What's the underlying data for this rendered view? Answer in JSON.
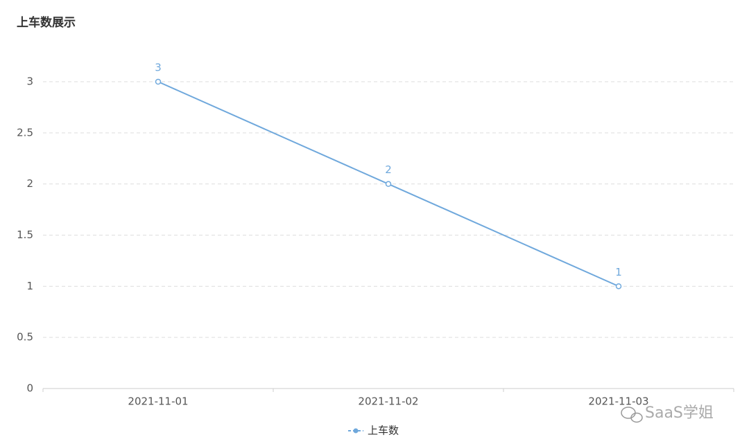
{
  "chart_data": {
    "type": "line",
    "title": "上车数展示",
    "categories": [
      "2021-11-01",
      "2021-11-02",
      "2021-11-03"
    ],
    "series": [
      {
        "name": "上车数",
        "color": "#6fa8dc",
        "values": [
          3,
          2,
          1
        ]
      }
    ],
    "ylim": [
      0,
      3
    ],
    "yticks": [
      0,
      0.5,
      1,
      1.5,
      2,
      2.5,
      3
    ],
    "grid": true,
    "legend": "bottom",
    "watermark": "SaaS学姐"
  }
}
